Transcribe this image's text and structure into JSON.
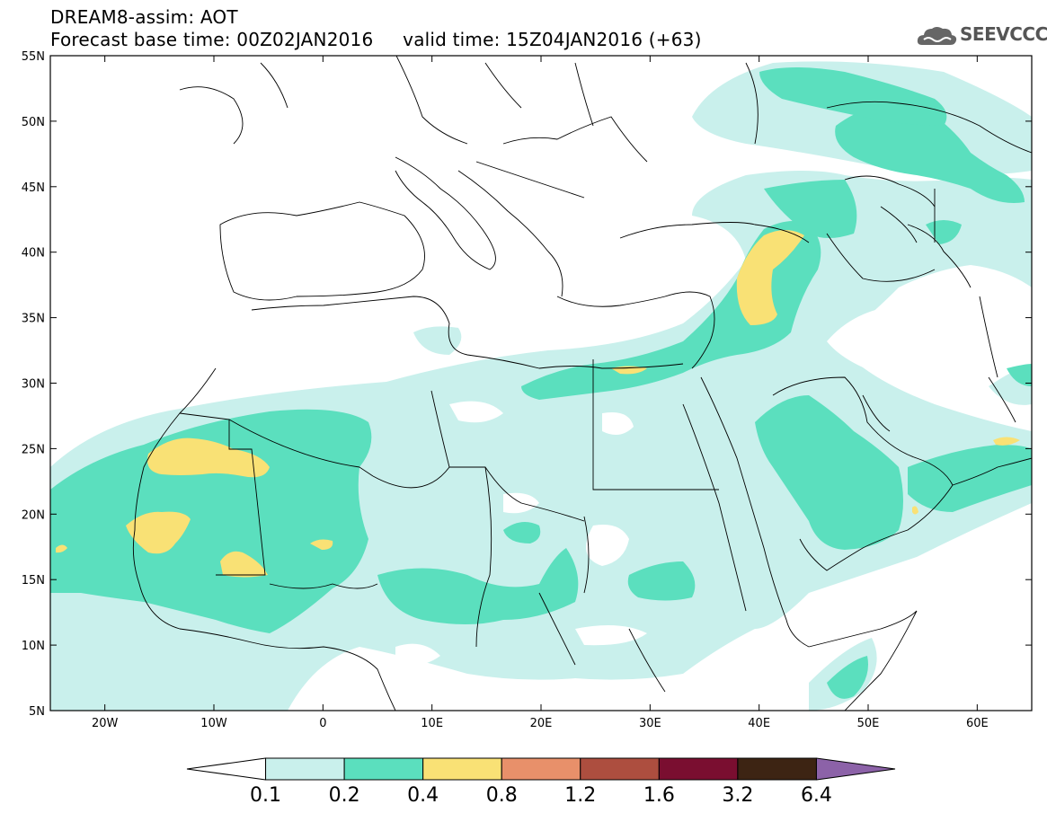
{
  "title": {
    "line1": "DREAM8-assim: AOT",
    "line2": "Forecast base time: 00Z02JAN2016     valid time: 15Z04JAN2016 (+63)"
  },
  "logo": {
    "text": "SEEVCCC",
    "icon": "cloud-icon"
  },
  "map": {
    "lat_labels": [
      "55N",
      "50N",
      "45N",
      "40N",
      "35N",
      "30N",
      "25N",
      "20N",
      "15N",
      "10N",
      "5N"
    ],
    "lon_labels": [
      "20W",
      "10W",
      "0",
      "10E",
      "20E",
      "30E",
      "40E",
      "50E",
      "60E"
    ],
    "lat_range": [
      5,
      55
    ],
    "lon_range": [
      -25,
      65
    ]
  },
  "colorbar": {
    "labels": [
      "0.1",
      "0.2",
      "0.4",
      "0.8",
      "1.2",
      "1.6",
      "3.2",
      "6.4"
    ],
    "colors": [
      "#ffffff",
      "#c9f0ec",
      "#5bdfbe",
      "#f9e175",
      "#e8906a",
      "#ad4e3f",
      "#7a0e30",
      "#3d2413",
      "#8c62a8"
    ]
  }
}
